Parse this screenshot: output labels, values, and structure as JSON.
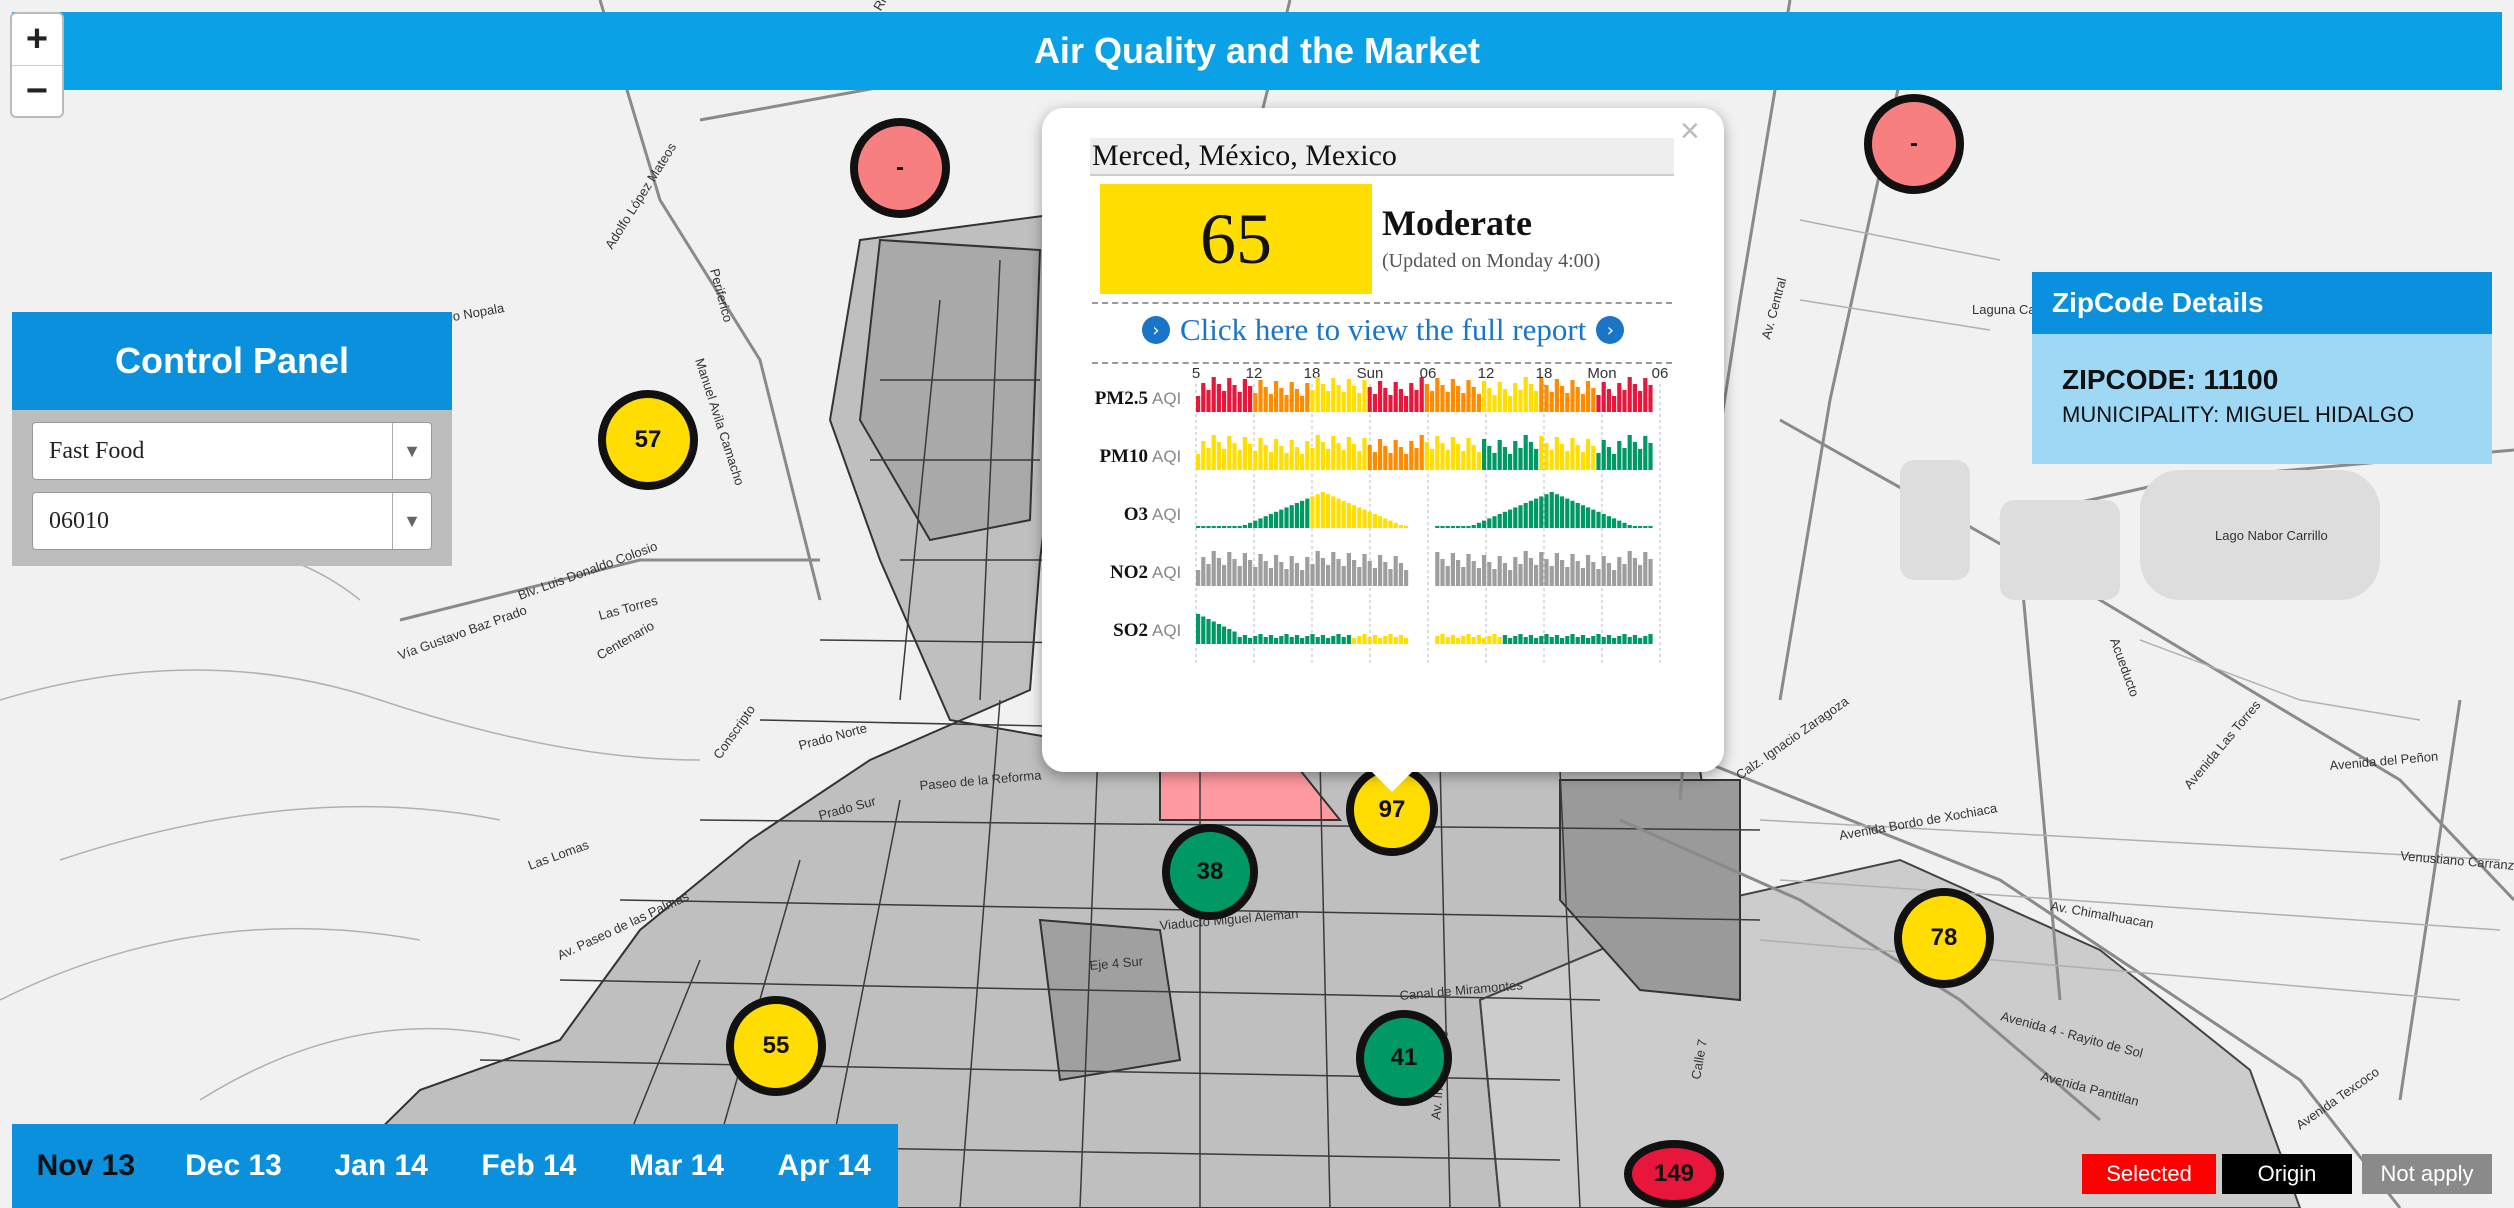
{
  "header": {
    "title": "Air Quality and the Market"
  },
  "zoom": {
    "in_label": "+",
    "out_label": "−"
  },
  "control_panel": {
    "title": "Control Panel",
    "category_select": {
      "value": "Fast Food"
    },
    "zip_select": {
      "value": "06010"
    }
  },
  "popup": {
    "location": "Merced, México, Mexico",
    "aqi_value": "65",
    "category": "Moderate",
    "updated": "(Updated on Monday 4:00)",
    "report_link": "Click here to view the full report",
    "close_label": "×",
    "time_ticks": [
      "5",
      "12",
      "18",
      "Sun",
      "06",
      "12",
      "18",
      "Mon",
      "06"
    ],
    "pollutants": [
      {
        "name": "PM2.5",
        "unit": "AQI"
      },
      {
        "name": "PM10",
        "unit": "AQI"
      },
      {
        "name": "O3",
        "unit": "AQI"
      },
      {
        "name": "NO2",
        "unit": "AQI"
      },
      {
        "name": "SO2",
        "unit": "AQI"
      }
    ]
  },
  "zipcode_details": {
    "title": "ZipCode Details",
    "zipcode": "ZIPCODE: 11100",
    "municipality": "MUNICIPALITY: MIGUEL HIDALGO"
  },
  "timeline": {
    "items": [
      "Nov 13",
      "Dec 13",
      "Jan 14",
      "Feb 14",
      "Mar 14",
      "Apr 14"
    ],
    "active_index": 0
  },
  "legend": {
    "selected": "Selected",
    "origin": "Origin",
    "not_apply": "Not apply",
    "colors": {
      "selected": "#ff0000",
      "origin": "#000000",
      "not_apply": "#8a8a8a"
    }
  },
  "map_labels": [
    "Mateo Nopala",
    "Adolfo López Mateos",
    "Manuel Avila Camacho",
    "Periferico",
    "Av. Rio San Joaquin",
    "Vía Gustavo Baz Prado",
    "Blv. Luis Donaldo Colosio",
    "Las Torres",
    "Paseo de la Reforma",
    "Viaducto Miguel Aleman",
    "Eje 4 Sur",
    "Calz. Ignacio Zaragoza",
    "Avenida Bordo de Xochiaca",
    "Avenida del Peñon",
    "Av. Central",
    "Lago Nabor Carrillo",
    "Laguna Casa",
    "Av. Chimalhuacan",
    "Avenida 4 - Rayito de Sol",
    "Avenida Las Torres",
    "Venustiano Carranza",
    "Avenida Pantitlan",
    "Avenida Texcoco",
    "Calle 7",
    "Canal de Miramontes",
    "Prado Sur",
    "Prado Norte",
    "Las Lomas",
    "Conscripto",
    "Centenario",
    "Av. Paseo de las Palmas",
    "Acueducto",
    "Av. Insurgentes"
  ],
  "markers": [
    {
      "value": "-",
      "color": "#f77f7f"
    },
    {
      "value": "-",
      "color": "#f77f7f"
    },
    {
      "value": "57",
      "color": "#ffdd00"
    },
    {
      "value": "97",
      "color": "#ffdd00"
    },
    {
      "value": "38",
      "color": "#009966"
    },
    {
      "value": "78",
      "color": "#ffdd00"
    },
    {
      "value": "55",
      "color": "#ffdd00"
    },
    {
      "value": "41",
      "color": "#009966"
    },
    {
      "value": "149",
      "color": "#e8163a"
    }
  ]
}
